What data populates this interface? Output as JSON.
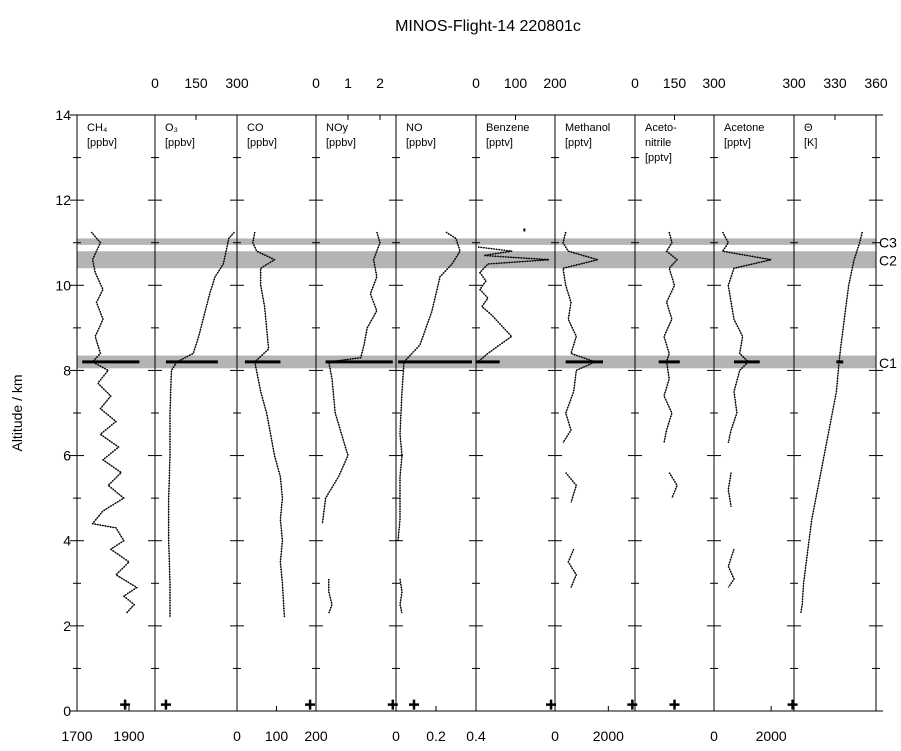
{
  "chart_data": {
    "type": "line",
    "title": "MINOS-Flight-14 220801c",
    "ylabel": "Altitude / km",
    "ylim": [
      0,
      14
    ],
    "yticks": [
      0,
      2,
      4,
      6,
      8,
      10,
      12,
      14
    ],
    "grid": false,
    "bands": [
      {
        "label": "C3",
        "from": 10.95,
        "to": 11.1
      },
      {
        "label": "C2",
        "from": 10.4,
        "to": 10.8
      },
      {
        "label": "C1",
        "from": 8.05,
        "to": 8.35
      }
    ],
    "panels": [
      {
        "label": [
          "CH₄",
          "[ppbv]"
        ],
        "axis": "bottom",
        "xlim": [
          1700,
          2000
        ],
        "ticks": [
          1700,
          1900
        ],
        "tick_labels": [
          "1700",
          "1900"
        ],
        "profile": [
          [
            1755,
            11.25
          ],
          [
            1790,
            11.0
          ],
          [
            1760,
            10.6
          ],
          [
            1770,
            10.3
          ],
          [
            1800,
            9.9
          ],
          [
            1775,
            9.6
          ],
          [
            1800,
            9.2
          ],
          [
            1770,
            8.8
          ],
          [
            1790,
            8.4
          ],
          [
            1760,
            8.2
          ],
          [
            1820,
            8.0
          ],
          [
            1780,
            7.7
          ],
          [
            1830,
            7.4
          ],
          [
            1790,
            7.1
          ],
          [
            1850,
            6.8
          ],
          [
            1790,
            6.5
          ],
          [
            1860,
            6.2
          ],
          [
            1800,
            5.9
          ],
          [
            1870,
            5.6
          ],
          [
            1820,
            5.3
          ],
          [
            1880,
            5.0
          ],
          [
            1800,
            4.7
          ],
          [
            1760,
            4.4
          ],
          [
            1850,
            4.3
          ],
          [
            1880,
            4.0
          ],
          [
            1830,
            3.8
          ],
          [
            1900,
            3.5
          ],
          [
            1850,
            3.2
          ],
          [
            1930,
            2.9
          ],
          [
            1880,
            2.7
          ],
          [
            1920,
            2.5
          ],
          [
            1890,
            2.3
          ]
        ],
        "spikes": [
          {
            "y": 8.2,
            "from": 1720,
            "to": 1940
          }
        ]
      },
      {
        "label": [
          "O₃",
          "[ppbv]"
        ],
        "axis": "top",
        "xlim": [
          0,
          300
        ],
        "ticks": [
          0,
          150,
          300
        ],
        "tick_labels": [
          "0",
          "150",
          "300"
        ],
        "profile": [
          [
            290,
            11.25
          ],
          [
            270,
            11.1
          ],
          [
            260,
            10.8
          ],
          [
            250,
            10.5
          ],
          [
            220,
            10.2
          ],
          [
            200,
            9.8
          ],
          [
            180,
            9.3
          ],
          [
            160,
            8.8
          ],
          [
            140,
            8.4
          ],
          [
            80,
            8.2
          ],
          [
            60,
            8.0
          ],
          [
            55,
            7.0
          ],
          [
            55,
            6.0
          ],
          [
            50,
            5.0
          ],
          [
            50,
            4.0
          ],
          [
            55,
            3.0
          ],
          [
            55,
            2.2
          ]
        ],
        "spikes": [
          {
            "y": 8.2,
            "from": 40,
            "to": 230
          }
        ]
      },
      {
        "label": [
          "CO",
          "[ppbv]"
        ],
        "axis": "bottom",
        "xlim": [
          0,
          200
        ],
        "ticks": [
          0,
          100,
          200
        ],
        "tick_labels": [
          "0",
          "100",
          "200"
        ],
        "profile": [
          [
            45,
            11.25
          ],
          [
            40,
            11.0
          ],
          [
            50,
            10.8
          ],
          [
            95,
            10.6
          ],
          [
            60,
            10.4
          ],
          [
            60,
            10.0
          ],
          [
            70,
            9.5
          ],
          [
            75,
            9.0
          ],
          [
            80,
            8.5
          ],
          [
            45,
            8.2
          ],
          [
            60,
            7.5
          ],
          [
            75,
            7.0
          ],
          [
            85,
            6.5
          ],
          [
            95,
            6.0
          ],
          [
            110,
            5.5
          ],
          [
            115,
            5.0
          ],
          [
            110,
            4.5
          ],
          [
            115,
            4.0
          ],
          [
            110,
            3.5
          ],
          [
            115,
            3.0
          ],
          [
            120,
            2.2
          ]
        ],
        "spikes": [
          {
            "y": 8.2,
            "from": 20,
            "to": 110
          }
        ]
      },
      {
        "label": [
          "NOy",
          "[ppbv]"
        ],
        "axis": "top",
        "xlim": [
          0,
          2.5
        ],
        "ticks": [
          0,
          1,
          2
        ],
        "tick_labels": [
          "0",
          "1",
          "2"
        ],
        "profile": [
          [
            1.9,
            11.25
          ],
          [
            2.0,
            11.0
          ],
          [
            1.8,
            10.6
          ],
          [
            1.9,
            10.2
          ],
          [
            1.7,
            9.8
          ],
          [
            1.9,
            9.4
          ],
          [
            1.6,
            9.0
          ],
          [
            1.5,
            8.6
          ],
          [
            1.4,
            8.3
          ],
          [
            0.4,
            8.2
          ],
          [
            0.5,
            7.8
          ],
          [
            0.6,
            7.0
          ],
          [
            0.8,
            6.5
          ],
          [
            1.0,
            6.0
          ],
          [
            0.7,
            5.5
          ],
          [
            0.3,
            5.0
          ],
          [
            0.2,
            4.4
          ],
          [
            null,
            null
          ],
          [
            0.4,
            3.1
          ],
          [
            0.4,
            2.8
          ],
          [
            0.5,
            2.5
          ],
          [
            0.4,
            2.3
          ]
        ],
        "spikes": [
          {
            "y": 8.2,
            "from": 0.3,
            "to": 2.4
          }
        ]
      },
      {
        "label": [
          "NO",
          "[ppbv]"
        ],
        "axis": "bottom",
        "xlim": [
          0,
          0.4
        ],
        "ticks": [
          0,
          0.2,
          0.4
        ],
        "tick_labels": [
          "0",
          "0.2",
          "0.4"
        ],
        "profile": [
          [
            0.25,
            11.25
          ],
          [
            0.3,
            11.1
          ],
          [
            0.32,
            10.8
          ],
          [
            0.28,
            10.5
          ],
          [
            0.22,
            10.2
          ],
          [
            0.2,
            9.8
          ],
          [
            0.18,
            9.4
          ],
          [
            0.15,
            9.0
          ],
          [
            0.12,
            8.6
          ],
          [
            0.04,
            8.2
          ],
          [
            0.03,
            7.5
          ],
          [
            0.02,
            6.5
          ],
          [
            0.03,
            6.0
          ],
          [
            0.02,
            5.5
          ],
          [
            0.02,
            4.5
          ],
          [
            0.01,
            4.0
          ],
          [
            null,
            null
          ],
          [
            0.02,
            3.1
          ],
          [
            0.03,
            2.8
          ],
          [
            0.02,
            2.5
          ],
          [
            0.03,
            2.3
          ]
        ],
        "spikes": [
          {
            "y": 8.2,
            "from": 0.01,
            "to": 0.38
          }
        ]
      },
      {
        "label": [
          "Benzene",
          "[pptv]"
        ],
        "axis": "top",
        "xlim": [
          0,
          200
        ],
        "ticks": [
          0,
          100,
          200
        ],
        "tick_labels": [
          "0",
          "100",
          "200"
        ],
        "profile": [
          [
            5,
            10.9
          ],
          [
            90,
            10.8
          ],
          [
            20,
            10.7
          ],
          [
            185,
            10.6
          ],
          [
            30,
            10.5
          ],
          [
            10,
            10.3
          ],
          [
            25,
            10.1
          ],
          [
            10,
            9.9
          ],
          [
            30,
            9.7
          ],
          [
            15,
            9.5
          ],
          [
            40,
            9.3
          ],
          [
            70,
            9.0
          ],
          [
            90,
            8.8
          ],
          [
            60,
            8.6
          ],
          [
            30,
            8.4
          ],
          [
            5,
            8.2
          ]
        ],
        "spikes": [
          {
            "y": 8.2,
            "from": 0,
            "to": 60
          },
          {
            "y": 11.3,
            "from": 120,
            "to": 125
          }
        ]
      },
      {
        "label": [
          "Methanol",
          "[pptv]"
        ],
        "axis": "bottom",
        "xlim": [
          0,
          3000
        ],
        "ticks": [
          0,
          2000
        ],
        "tick_labels": [
          "0",
          "2000"
        ],
        "profile": [
          [
            400,
            11.25
          ],
          [
            300,
            11.0
          ],
          [
            500,
            10.8
          ],
          [
            1600,
            10.6
          ],
          [
            300,
            10.4
          ],
          [
            400,
            10.0
          ],
          [
            600,
            9.6
          ],
          [
            500,
            9.2
          ],
          [
            800,
            8.8
          ],
          [
            600,
            8.4
          ],
          [
            1500,
            8.2
          ],
          [
            800,
            8.0
          ],
          [
            700,
            7.5
          ],
          [
            400,
            7.0
          ],
          [
            600,
            6.6
          ],
          [
            300,
            6.3
          ],
          [
            null,
            null
          ],
          [
            400,
            5.6
          ],
          [
            800,
            5.3
          ],
          [
            600,
            4.9
          ],
          [
            null,
            null
          ],
          [
            700,
            3.8
          ],
          [
            500,
            3.5
          ],
          [
            800,
            3.2
          ],
          [
            600,
            2.9
          ]
        ],
        "spikes": [
          {
            "y": 8.2,
            "from": 400,
            "to": 1800
          }
        ]
      },
      {
        "label": [
          "Aceto-",
          "nitrile",
          "[pptv]"
        ],
        "axis": "top",
        "xlim": [
          0,
          300
        ],
        "ticks": [
          0,
          150,
          300
        ],
        "tick_labels": [
          "0",
          "150",
          "300"
        ],
        "profile": [
          [
            130,
            11.25
          ],
          [
            140,
            11.0
          ],
          [
            120,
            10.8
          ],
          [
            160,
            10.6
          ],
          [
            130,
            10.4
          ],
          [
            150,
            10.0
          ],
          [
            120,
            9.6
          ],
          [
            140,
            9.2
          ],
          [
            110,
            8.8
          ],
          [
            130,
            8.4
          ],
          [
            120,
            8.2
          ],
          [
            130,
            7.8
          ],
          [
            110,
            7.4
          ],
          [
            140,
            7.0
          ],
          [
            120,
            6.6
          ],
          [
            110,
            6.3
          ],
          [
            null,
            null
          ],
          [
            130,
            5.6
          ],
          [
            160,
            5.3
          ],
          [
            140,
            5.0
          ]
        ],
        "spikes": [
          {
            "y": 8.2,
            "from": 90,
            "to": 170
          }
        ]
      },
      {
        "label": [
          "Acetone",
          "[pptv]"
        ],
        "axis": "bottom",
        "xlim": [
          0,
          2800
        ],
        "ticks": [
          0,
          2000
        ],
        "tick_labels": [
          "0",
          "2000"
        ],
        "profile": [
          [
            300,
            11.25
          ],
          [
            500,
            11.0
          ],
          [
            300,
            10.8
          ],
          [
            2000,
            10.6
          ],
          [
            700,
            10.4
          ],
          [
            500,
            10.0
          ],
          [
            600,
            9.6
          ],
          [
            700,
            9.2
          ],
          [
            1000,
            8.8
          ],
          [
            900,
            8.4
          ],
          [
            1200,
            8.2
          ],
          [
            900,
            8.0
          ],
          [
            700,
            7.5
          ],
          [
            800,
            7.0
          ],
          [
            600,
            6.6
          ],
          [
            500,
            6.3
          ],
          [
            null,
            null
          ],
          [
            600,
            5.6
          ],
          [
            500,
            5.2
          ],
          [
            600,
            4.8
          ],
          [
            null,
            null
          ],
          [
            700,
            3.8
          ],
          [
            500,
            3.4
          ],
          [
            700,
            3.1
          ],
          [
            500,
            2.9
          ]
        ],
        "spikes": [
          {
            "y": 8.2,
            "from": 700,
            "to": 1600
          }
        ]
      },
      {
        "label": [
          "Θ",
          "[K]"
        ],
        "axis": "top",
        "xlim": [
          300,
          360
        ],
        "ticks": [
          300,
          330,
          360
        ],
        "tick_labels": [
          "300",
          "330",
          "360"
        ],
        "profile": [
          [
            350,
            11.25
          ],
          [
            348,
            11.0
          ],
          [
            346,
            10.8
          ],
          [
            344,
            10.6
          ],
          [
            342,
            10.3
          ],
          [
            340,
            10.0
          ],
          [
            338,
            9.5
          ],
          [
            336,
            9.0
          ],
          [
            334,
            8.5
          ],
          [
            333,
            8.2
          ],
          [
            331,
            7.5
          ],
          [
            328,
            7.0
          ],
          [
            325,
            6.5
          ],
          [
            322,
            6.0
          ],
          [
            319,
            5.5
          ],
          [
            316,
            5.0
          ],
          [
            313,
            4.5
          ],
          [
            311,
            4.0
          ],
          [
            309,
            3.5
          ],
          [
            307,
            3.0
          ],
          [
            306,
            2.5
          ],
          [
            305,
            2.3
          ]
        ],
        "spikes": [
          {
            "y": 8.2,
            "from": 331,
            "to": 336
          }
        ]
      }
    ],
    "markers": [
      {
        "panel": 0,
        "x": 1885,
        "y": 0.15
      },
      {
        "panel": 1,
        "x": 40,
        "y": 0.15
      },
      {
        "panel": 2,
        "x": 185,
        "y": 0.15
      },
      {
        "panel": 3,
        "x": 2.4,
        "y": 0.15
      },
      {
        "panel": 4,
        "x": 0.09,
        "y": 0.15
      },
      {
        "panel": 5,
        "x": 190,
        "y": 0.15
      },
      {
        "panel": 6,
        "x": 2900,
        "y": 0.15
      },
      {
        "panel": 7,
        "x": 150,
        "y": 0.15
      },
      {
        "panel": 8,
        "x": 2750,
        "y": 0.15
      }
    ]
  }
}
